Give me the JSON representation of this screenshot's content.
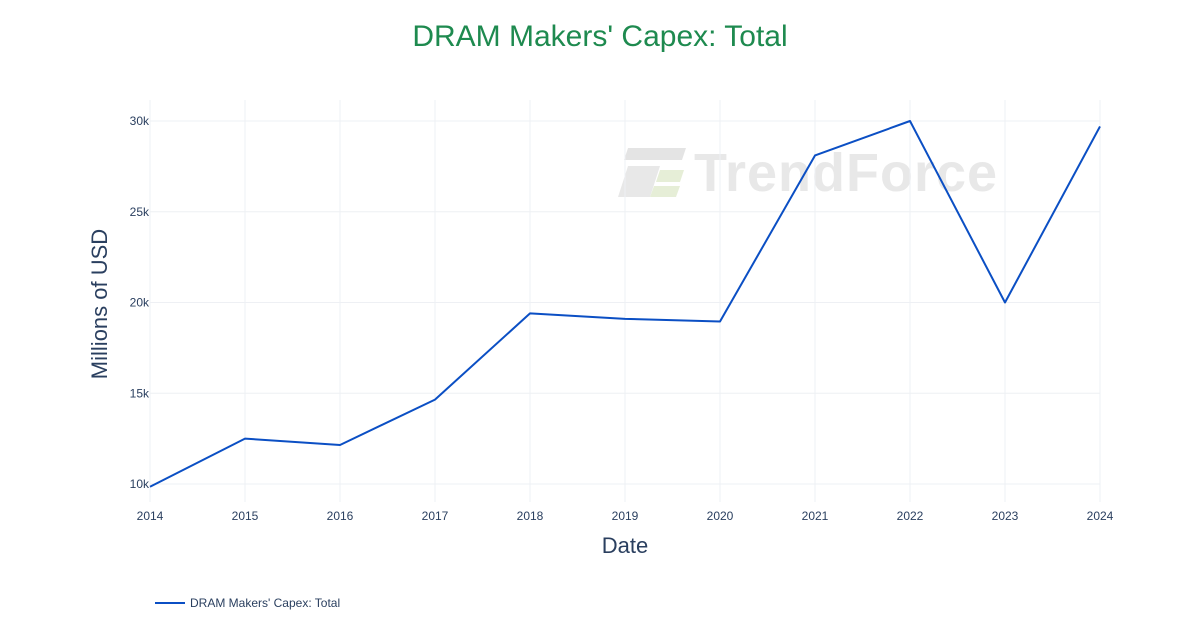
{
  "colors": {
    "title": "#1e8a4f",
    "line": "#0b4fc4",
    "text": "#2a3f5f"
  },
  "watermark": {
    "icon": "trendforce-logo-icon",
    "text": "TrendForce"
  },
  "chart_data": {
    "type": "line",
    "title": "DRAM Makers' Capex: Total",
    "xlabel": "Date",
    "ylabel": "Millions of USD",
    "x": [
      "2014",
      "2015",
      "2016",
      "2017",
      "2018",
      "2019",
      "2020",
      "2021",
      "2022",
      "2023",
      "2024"
    ],
    "xlim": [
      2014,
      2024
    ],
    "ylim": [
      9000,
      31000
    ],
    "yticks": [
      10000,
      15000,
      20000,
      25000,
      30000
    ],
    "ytick_labels": [
      "10k",
      "15k",
      "20k",
      "25k",
      "30k"
    ],
    "grid": true,
    "legend_position": "bottom-left",
    "series": [
      {
        "name": "DRAM Makers' Capex: Total",
        "values": [
          9850,
          12500,
          12150,
          14650,
          19400,
          19100,
          18950,
          28100,
          30000,
          20000,
          29700
        ]
      }
    ]
  }
}
